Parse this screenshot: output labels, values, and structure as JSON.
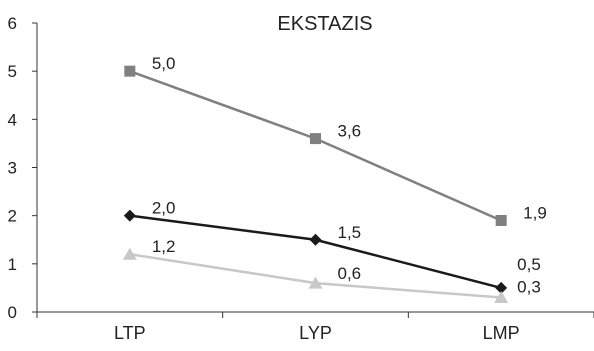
{
  "chart_data": {
    "type": "line",
    "title": "EKSTAZIS",
    "categories": [
      "LTP",
      "LYP",
      "LMP"
    ],
    "ylim": [
      0,
      6
    ],
    "yticks": [
      "0",
      "1",
      "2",
      "3",
      "4",
      "5",
      "6"
    ],
    "grid": false,
    "series": [
      {
        "values": [
          5.0,
          3.6,
          1.9
        ],
        "labels": [
          "5,0",
          "3,6",
          "1,9"
        ],
        "color": "#808080",
        "marker": "square"
      },
      {
        "values": [
          2.0,
          1.5,
          0.5
        ],
        "labels": [
          "2,0",
          "1,5",
          "0,5"
        ],
        "color": "#1a1a1a",
        "marker": "diamond"
      },
      {
        "values": [
          1.2,
          0.6,
          0.3
        ],
        "labels": [
          "1,2",
          "0,6",
          "0,3"
        ],
        "color": "#c8c8c8",
        "marker": "triangle"
      }
    ]
  }
}
